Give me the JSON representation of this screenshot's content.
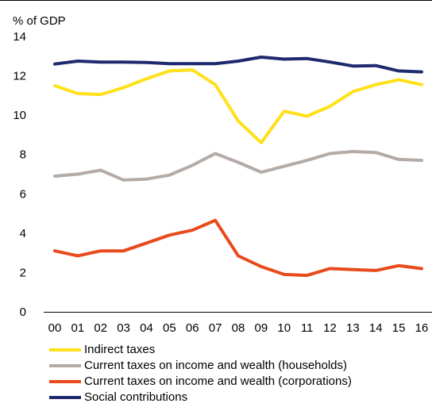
{
  "chart_data": {
    "type": "line",
    "ylabel": "% of GDP",
    "ylim": [
      0,
      14
    ],
    "yticks": [
      0,
      2,
      4,
      6,
      8,
      10,
      12,
      14
    ],
    "categories": [
      "00",
      "01",
      "02",
      "03",
      "04",
      "05",
      "06",
      "07",
      "08",
      "09",
      "10",
      "11",
      "12",
      "13",
      "14",
      "15",
      "16"
    ],
    "grid": false,
    "legend_position": "bottom",
    "series": [
      {
        "name": "Indirect taxes",
        "color": "#ffe01a",
        "values": [
          11.5,
          11.1,
          11.05,
          11.4,
          11.85,
          12.25,
          12.3,
          11.55,
          9.7,
          8.6,
          10.2,
          9.95,
          10.45,
          11.2,
          11.55,
          11.8,
          11.55
        ]
      },
      {
        "name": "Current taxes on income and wealth (households)",
        "color": "#b5aba6",
        "values": [
          6.9,
          7.0,
          7.2,
          6.7,
          6.75,
          6.95,
          7.45,
          8.05,
          7.6,
          7.1,
          7.4,
          7.7,
          8.05,
          8.15,
          8.1,
          7.75,
          7.7
        ]
      },
      {
        "name": "Current taxes on income and wealth (corporations)",
        "color": "#e84a1c",
        "values": [
          3.1,
          2.85,
          3.1,
          3.1,
          3.5,
          3.9,
          4.15,
          4.65,
          2.85,
          2.3,
          1.9,
          1.85,
          2.2,
          2.15,
          2.1,
          2.35,
          2.2
        ]
      },
      {
        "name": "Social contributions",
        "color": "#1f2a6e",
        "values": [
          12.6,
          12.75,
          12.7,
          12.7,
          12.68,
          12.62,
          12.62,
          12.62,
          12.75,
          12.95,
          12.85,
          12.88,
          12.7,
          12.5,
          12.52,
          12.25,
          12.2
        ]
      }
    ]
  }
}
